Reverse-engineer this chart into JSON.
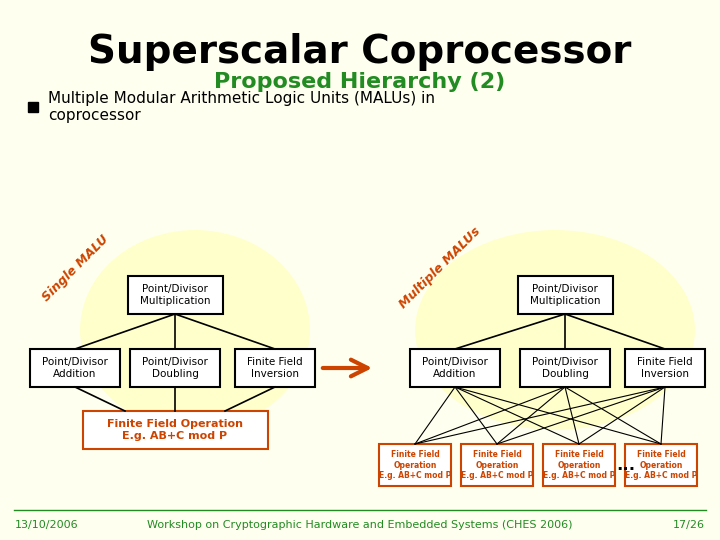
{
  "bg_color": "#FFFFF0",
  "title": "Superscalar Coprocessor",
  "subtitle": "Proposed Hierarchy (2)",
  "subtitle_color": "#228B22",
  "title_color": "#000000",
  "bullet_text": "Multiple Modular Arithmetic Logic Units (MALUs) in\ncoprocessor",
  "single_label": "Single MALU",
  "multiple_label": "Multiple MALUs",
  "single_label_color": "#CC4400",
  "multiple_label_color": "#CC4400",
  "box_border_color": "#000000",
  "box_fill_color": "#FFFFFF",
  "box_orange_border": "#CC4400",
  "box_orange_fill": "#FFFFFF",
  "text_color": "#000000",
  "orange_text_color": "#CC4400",
  "arrow_color": "#CC4400",
  "footer_left": "13/10/2006",
  "footer_center": "Workshop on Cryptographic Hardware and Embedded Systems (CHES 2006)",
  "footer_right": "17/26",
  "footer_color": "#228B22"
}
